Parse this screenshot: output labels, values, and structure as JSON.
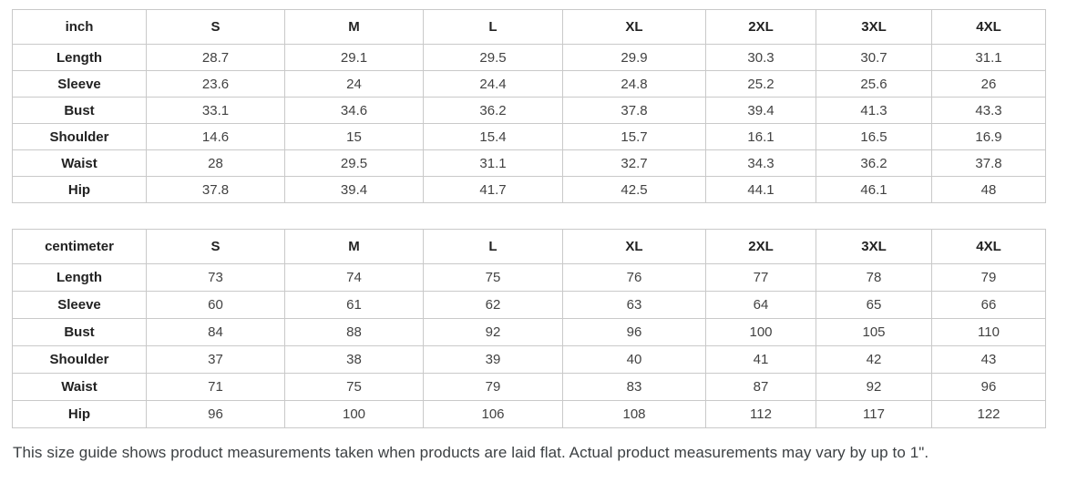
{
  "tables": [
    {
      "unit_label": "inch",
      "size_headers": [
        "S",
        "M",
        "L",
        "XL",
        "2XL",
        "3XL",
        "4XL"
      ],
      "rows": [
        {
          "label": "Length",
          "values": [
            "28.7",
            "29.1",
            "29.5",
            "29.9",
            "30.3",
            "30.7",
            "31.1"
          ]
        },
        {
          "label": "Sleeve",
          "values": [
            "23.6",
            "24",
            "24.4",
            "24.8",
            "25.2",
            "25.6",
            "26"
          ]
        },
        {
          "label": "Bust",
          "values": [
            "33.1",
            "34.6",
            "36.2",
            "37.8",
            "39.4",
            "41.3",
            "43.3"
          ]
        },
        {
          "label": "Shoulder",
          "values": [
            "14.6",
            "15",
            "15.4",
            "15.7",
            "16.1",
            "16.5",
            "16.9"
          ]
        },
        {
          "label": "Waist",
          "values": [
            "28",
            "29.5",
            "31.1",
            "32.7",
            "34.3",
            "36.2",
            "37.8"
          ]
        },
        {
          "label": "Hip",
          "values": [
            "37.8",
            "39.4",
            "41.7",
            "42.5",
            "44.1",
            "46.1",
            "48"
          ]
        }
      ]
    },
    {
      "unit_label": "centimeter",
      "size_headers": [
        "S",
        "M",
        "L",
        "XL",
        "2XL",
        "3XL",
        "4XL"
      ],
      "rows": [
        {
          "label": "Length",
          "values": [
            "73",
            "74",
            "75",
            "76",
            "77",
            "78",
            "79"
          ]
        },
        {
          "label": "Sleeve",
          "values": [
            "60",
            "61",
            "62",
            "63",
            "64",
            "65",
            "66"
          ]
        },
        {
          "label": "Bust",
          "values": [
            "84",
            "88",
            "92",
            "96",
            "100",
            "105",
            "110"
          ]
        },
        {
          "label": "Shoulder",
          "values": [
            "37",
            "38",
            "39",
            "40",
            "41",
            "42",
            "43"
          ]
        },
        {
          "label": "Waist",
          "values": [
            "71",
            "75",
            "79",
            "83",
            "87",
            "92",
            "96"
          ]
        },
        {
          "label": "Hip",
          "values": [
            "96",
            "100",
            "106",
            "108",
            "112",
            "117",
            "122"
          ]
        }
      ]
    }
  ],
  "footnote": "This size guide shows product measurements taken when products are laid flat. Actual product measurements may vary by up to 1\".",
  "colors": {
    "background": "#ffffff",
    "border": "#c9c9c9",
    "header_text": "#222222",
    "value_text": "#424242",
    "note_text": "#3c4043"
  }
}
